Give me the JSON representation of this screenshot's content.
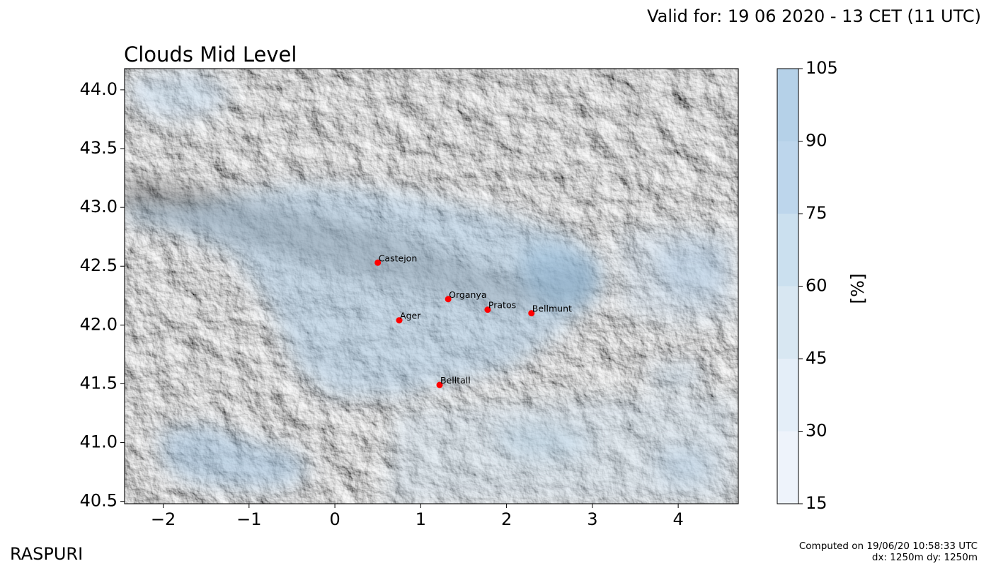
{
  "header": {
    "valid_text": "Valid for: 19 06 2020 - 13 CET (11 UTC)",
    "title": "Clouds Mid Level"
  },
  "footer": {
    "brand": "RASPURI",
    "computed_line1": "Computed on 19/06/20 10:58:33 UTC",
    "computed_line2": "dx: 1250m dy: 1250m"
  },
  "map": {
    "lon_range": [
      -2.45,
      4.7
    ],
    "lat_range": [
      40.48,
      44.18
    ],
    "x_ticks": [
      {
        "value": -2,
        "label": "−2"
      },
      {
        "value": -1,
        "label": "−1"
      },
      {
        "value": 0,
        "label": "0"
      },
      {
        "value": 1,
        "label": "1"
      },
      {
        "value": 2,
        "label": "2"
      },
      {
        "value": 3,
        "label": "3"
      },
      {
        "value": 4,
        "label": "4"
      }
    ],
    "y_ticks": [
      {
        "value": 40.5,
        "label": "40.5"
      },
      {
        "value": 41.0,
        "label": "41.0"
      },
      {
        "value": 41.5,
        "label": "41.5"
      },
      {
        "value": 42.0,
        "label": "42.0"
      },
      {
        "value": 42.5,
        "label": "42.5"
      },
      {
        "value": 43.0,
        "label": "43.0"
      },
      {
        "value": 43.5,
        "label": "43.5"
      },
      {
        "value": 44.0,
        "label": "44.0"
      }
    ],
    "cities": [
      {
        "name": "Castejon",
        "lon": 0.5,
        "lat": 42.53
      },
      {
        "name": "Organya",
        "lon": 1.32,
        "lat": 42.22
      },
      {
        "name": "Pratos",
        "lon": 1.78,
        "lat": 42.13
      },
      {
        "name": "Bellmunt",
        "lon": 2.29,
        "lat": 42.1
      },
      {
        "name": "Ager",
        "lon": 0.75,
        "lat": 42.04
      },
      {
        "name": "Belltall",
        "lon": 1.22,
        "lat": 41.49
      }
    ],
    "city_color": "#ff0000",
    "sea_color": "#d4d4d4"
  },
  "colorbar": {
    "unit_label": "[%]",
    "levels": [
      15,
      30,
      45,
      60,
      75,
      90,
      105
    ],
    "level_labels": [
      "15",
      "30",
      "45",
      "60",
      "75",
      "90",
      "105"
    ],
    "colors": [
      "#eef3fb",
      "#e4eef8",
      "#d8e7f2",
      "#cbe0ef",
      "#bdd6ec",
      "#b5d1e8"
    ]
  }
}
